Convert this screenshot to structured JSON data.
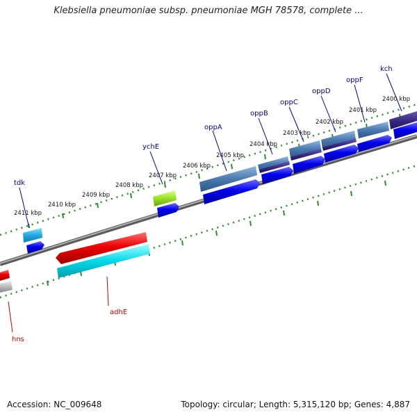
{
  "header": {
    "title": "Klebsiella pneumoniae subsp. pneumoniae MGH 78578, complete ..."
  },
  "footer": {
    "accession": "Accession: NC_009648",
    "summary": "Topology: circular; Length: 5,315,120 bp; Genes: 4,887"
  },
  "map": {
    "tick_labels": [
      "2400 kbp",
      "2401 kbp",
      "2402 kbp",
      "2403 kbp",
      "2404 kbp",
      "2405 kbp",
      "2406 kbp",
      "2407 kbp",
      "2408 kbp",
      "2409 kbp",
      "2410 kbp",
      "2411 kbp"
    ],
    "genes": [
      {
        "name": "kch",
        "color": "#000099"
      },
      {
        "name": "oppF",
        "color": "#000099"
      },
      {
        "name": "oppD",
        "color": "#000099"
      },
      {
        "name": "oppC",
        "color": "#000099"
      },
      {
        "name": "oppB",
        "color": "#000099"
      },
      {
        "name": "oppA",
        "color": "#000099"
      },
      {
        "name": "ychE",
        "color": "#000099"
      },
      {
        "name": "tdk",
        "color": "#000099"
      },
      {
        "name": "adhE",
        "color": "#cc0000"
      },
      {
        "name": "hns",
        "color": "#cc0000"
      }
    ],
    "colors": {
      "backbone": "#808080",
      "tick": "#2e8b2e",
      "forward_cds": "#0000ee",
      "reverse_cds": "#ee0000",
      "cyan_track": "#00d8e8",
      "steel_track": "#4a7ab0",
      "purple_track": "#3a2a80",
      "lime_track": "#99e022",
      "grey_track": "#bbbbbb"
    }
  }
}
